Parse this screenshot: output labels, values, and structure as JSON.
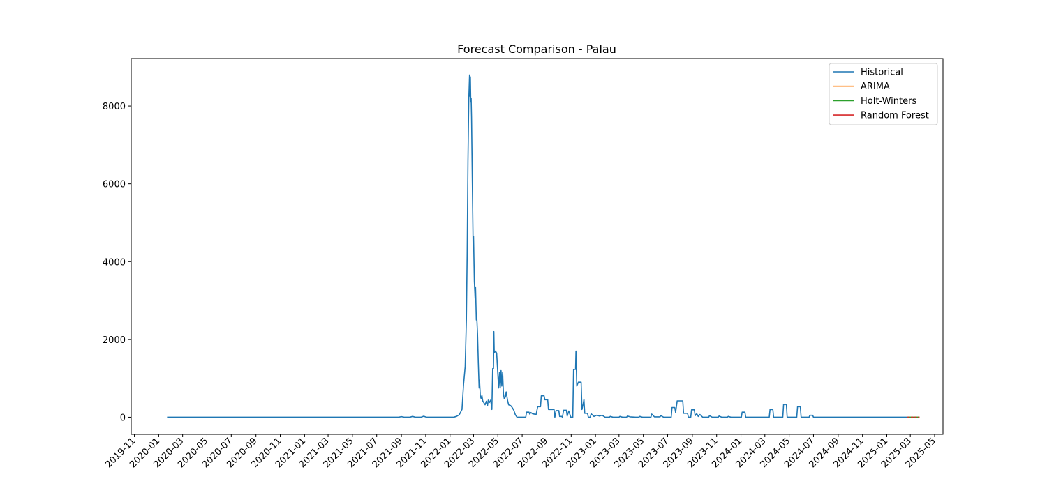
{
  "chart_data": {
    "type": "line",
    "title": "Forecast Comparison - Palau",
    "xlabel": "",
    "ylabel": "",
    "xlim": [
      "2019-10-24",
      "2025-05-22"
    ],
    "ylim": [
      -440,
      9220
    ],
    "y_ticks": [
      0,
      2000,
      4000,
      6000,
      8000
    ],
    "x_ticks": [
      "2019-11",
      "2020-01",
      "2020-03",
      "2020-05",
      "2020-07",
      "2020-09",
      "2020-11",
      "2021-01",
      "2021-03",
      "2021-05",
      "2021-07",
      "2021-09",
      "2021-11",
      "2022-01",
      "2022-03",
      "2022-05",
      "2022-07",
      "2022-09",
      "2022-11",
      "2023-01",
      "2023-03",
      "2023-05",
      "2023-07",
      "2023-09",
      "2023-11",
      "2024-01",
      "2024-03",
      "2024-05",
      "2024-07",
      "2024-09",
      "2024-11",
      "2025-01",
      "2025-03",
      "2025-05"
    ],
    "legend_position": "top-right",
    "grid": false,
    "series": [
      {
        "name": "Historical",
        "color": "#1f77b4",
        "points": [
          [
            "2020-01-22",
            0
          ],
          [
            "2021-08-25",
            0
          ],
          [
            "2021-09-01",
            15
          ],
          [
            "2021-09-08",
            0
          ],
          [
            "2021-09-22",
            0
          ],
          [
            "2021-09-29",
            20
          ],
          [
            "2021-10-06",
            0
          ],
          [
            "2021-10-20",
            0
          ],
          [
            "2021-10-27",
            25
          ],
          [
            "2021-11-03",
            0
          ],
          [
            "2022-01-10",
            0
          ],
          [
            "2022-01-17",
            20
          ],
          [
            "2022-01-24",
            60
          ],
          [
            "2022-01-31",
            200
          ],
          [
            "2022-02-04",
            850
          ],
          [
            "2022-02-08",
            1300
          ],
          [
            "2022-02-11",
            2500
          ],
          [
            "2022-02-13",
            4200
          ],
          [
            "2022-02-15",
            6600
          ],
          [
            "2022-02-17",
            8150
          ],
          [
            "2022-02-19",
            8800
          ],
          [
            "2022-02-20",
            8250
          ],
          [
            "2022-02-21",
            8750
          ],
          [
            "2022-02-22",
            8100
          ],
          [
            "2022-02-23",
            8200
          ],
          [
            "2022-02-24",
            7700
          ],
          [
            "2022-02-26",
            6000
          ],
          [
            "2022-02-28",
            4400
          ],
          [
            "2022-03-01",
            4650
          ],
          [
            "2022-03-03",
            3500
          ],
          [
            "2022-03-05",
            3050
          ],
          [
            "2022-03-06",
            3350
          ],
          [
            "2022-03-08",
            2500
          ],
          [
            "2022-03-09",
            2600
          ],
          [
            "2022-03-11",
            2150
          ],
          [
            "2022-03-13",
            1400
          ],
          [
            "2022-03-15",
            750
          ],
          [
            "2022-03-16",
            950
          ],
          [
            "2022-03-18",
            550
          ],
          [
            "2022-03-20",
            480
          ],
          [
            "2022-03-22",
            560
          ],
          [
            "2022-03-24",
            420
          ],
          [
            "2022-03-27",
            370
          ],
          [
            "2022-03-30",
            320
          ],
          [
            "2022-04-02",
            410
          ],
          [
            "2022-04-05",
            300
          ],
          [
            "2022-04-07",
            440
          ],
          [
            "2022-04-10",
            380
          ],
          [
            "2022-04-13",
            440
          ],
          [
            "2022-04-16",
            200
          ],
          [
            "2022-04-18",
            1250
          ],
          [
            "2022-04-20",
            1250
          ],
          [
            "2022-04-21",
            2200
          ],
          [
            "2022-04-22",
            1650
          ],
          [
            "2022-04-25",
            1700
          ],
          [
            "2022-04-28",
            1650
          ],
          [
            "2022-05-01",
            1100
          ],
          [
            "2022-05-03",
            750
          ],
          [
            "2022-05-05",
            1150
          ],
          [
            "2022-05-07",
            750
          ],
          [
            "2022-05-09",
            1200
          ],
          [
            "2022-05-11",
            800
          ],
          [
            "2022-05-13",
            1150
          ],
          [
            "2022-05-15",
            600
          ],
          [
            "2022-05-17",
            480
          ],
          [
            "2022-05-20",
            520
          ],
          [
            "2022-05-22",
            650
          ],
          [
            "2022-05-25",
            450
          ],
          [
            "2022-05-28",
            320
          ],
          [
            "2022-06-02",
            300
          ],
          [
            "2022-06-06",
            250
          ],
          [
            "2022-06-10",
            180
          ],
          [
            "2022-06-14",
            60
          ],
          [
            "2022-06-18",
            0
          ],
          [
            "2022-07-10",
            0
          ],
          [
            "2022-07-12",
            130
          ],
          [
            "2022-07-18",
            130
          ],
          [
            "2022-07-20",
            80
          ],
          [
            "2022-07-23",
            120
          ],
          [
            "2022-07-27",
            90
          ],
          [
            "2022-08-05",
            70
          ],
          [
            "2022-08-09",
            270
          ],
          [
            "2022-08-16",
            270
          ],
          [
            "2022-08-18",
            550
          ],
          [
            "2022-08-25",
            550
          ],
          [
            "2022-08-27",
            450
          ],
          [
            "2022-09-03",
            450
          ],
          [
            "2022-09-05",
            200
          ],
          [
            "2022-09-19",
            200
          ],
          [
            "2022-09-21",
            0
          ],
          [
            "2022-09-24",
            170
          ],
          [
            "2022-10-01",
            170
          ],
          [
            "2022-10-03",
            20
          ],
          [
            "2022-10-08",
            20
          ],
          [
            "2022-10-10",
            0
          ],
          [
            "2022-10-13",
            180
          ],
          [
            "2022-10-20",
            180
          ],
          [
            "2022-10-22",
            30
          ],
          [
            "2022-10-26",
            160
          ],
          [
            "2022-10-31",
            0
          ],
          [
            "2022-11-05",
            0
          ],
          [
            "2022-11-07",
            1230
          ],
          [
            "2022-11-12",
            1230
          ],
          [
            "2022-11-13",
            1700
          ],
          [
            "2022-11-15",
            800
          ],
          [
            "2022-11-19",
            900
          ],
          [
            "2022-11-26",
            900
          ],
          [
            "2022-11-28",
            200
          ],
          [
            "2022-12-01",
            330
          ],
          [
            "2022-12-03",
            460
          ],
          [
            "2022-12-05",
            100
          ],
          [
            "2022-12-12",
            100
          ],
          [
            "2022-12-14",
            0
          ],
          [
            "2022-12-19",
            0
          ],
          [
            "2022-12-21",
            90
          ],
          [
            "2022-12-28",
            20
          ],
          [
            "2023-01-04",
            50
          ],
          [
            "2023-01-11",
            30
          ],
          [
            "2023-01-18",
            50
          ],
          [
            "2023-01-25",
            0
          ],
          [
            "2023-02-05",
            0
          ],
          [
            "2023-02-07",
            20
          ],
          [
            "2023-02-14",
            0
          ],
          [
            "2023-03-01",
            0
          ],
          [
            "2023-03-03",
            20
          ],
          [
            "2023-03-10",
            0
          ],
          [
            "2023-03-20",
            0
          ],
          [
            "2023-03-22",
            30
          ],
          [
            "2023-03-29",
            10
          ],
          [
            "2023-04-12",
            0
          ],
          [
            "2023-04-20",
            0
          ],
          [
            "2023-04-22",
            20
          ],
          [
            "2023-04-29",
            0
          ],
          [
            "2023-05-20",
            0
          ],
          [
            "2023-05-22",
            80
          ],
          [
            "2023-05-29",
            10
          ],
          [
            "2023-06-12",
            10
          ],
          [
            "2023-06-14",
            40
          ],
          [
            "2023-06-21",
            0
          ],
          [
            "2023-07-10",
            0
          ],
          [
            "2023-07-12",
            250
          ],
          [
            "2023-07-19",
            250
          ],
          [
            "2023-07-21",
            120
          ],
          [
            "2023-07-25",
            420
          ],
          [
            "2023-08-08",
            420
          ],
          [
            "2023-08-10",
            100
          ],
          [
            "2023-08-20",
            100
          ],
          [
            "2023-08-22",
            0
          ],
          [
            "2023-08-28",
            0
          ],
          [
            "2023-08-30",
            190
          ],
          [
            "2023-09-06",
            190
          ],
          [
            "2023-09-08",
            40
          ],
          [
            "2023-09-12",
            90
          ],
          [
            "2023-09-16",
            20
          ],
          [
            "2023-09-20",
            70
          ],
          [
            "2023-09-27",
            0
          ],
          [
            "2023-10-12",
            0
          ],
          [
            "2023-10-14",
            40
          ],
          [
            "2023-10-21",
            0
          ],
          [
            "2023-11-05",
            0
          ],
          [
            "2023-11-07",
            30
          ],
          [
            "2023-11-14",
            0
          ],
          [
            "2023-11-28",
            0
          ],
          [
            "2023-11-30",
            20
          ],
          [
            "2023-12-07",
            0
          ],
          [
            "2024-01-02",
            0
          ],
          [
            "2024-01-04",
            130
          ],
          [
            "2024-01-11",
            130
          ],
          [
            "2024-01-13",
            0
          ],
          [
            "2024-03-12",
            0
          ],
          [
            "2024-03-14",
            200
          ],
          [
            "2024-03-21",
            200
          ],
          [
            "2024-03-23",
            0
          ],
          [
            "2024-04-15",
            0
          ],
          [
            "2024-04-17",
            330
          ],
          [
            "2024-04-24",
            330
          ],
          [
            "2024-04-26",
            0
          ],
          [
            "2024-05-20",
            0
          ],
          [
            "2024-05-22",
            270
          ],
          [
            "2024-05-29",
            270
          ],
          [
            "2024-05-31",
            0
          ],
          [
            "2024-06-20",
            0
          ],
          [
            "2024-06-22",
            50
          ],
          [
            "2024-06-29",
            50
          ],
          [
            "2024-07-01",
            0
          ],
          [
            "2025-02-22",
            0
          ]
        ]
      },
      {
        "name": "ARIMA",
        "color": "#ff7f0e",
        "points": [
          [
            "2025-02-22",
            0
          ],
          [
            "2025-03-24",
            0
          ]
        ]
      },
      {
        "name": "Holt-Winters",
        "color": "#2ca02c",
        "points": [
          [
            "2025-02-22",
            0
          ],
          [
            "2025-03-24",
            0
          ]
        ]
      },
      {
        "name": "Random Forest",
        "color": "#d62728",
        "dashed": true,
        "points": [
          [
            "2025-02-22",
            0
          ],
          [
            "2025-03-24",
            0
          ]
        ]
      }
    ]
  }
}
